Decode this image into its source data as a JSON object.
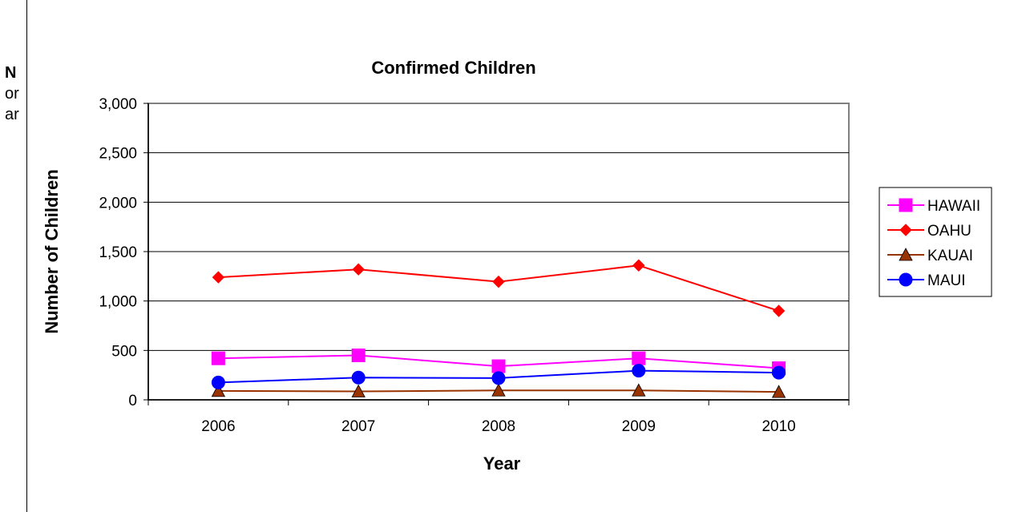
{
  "background_fragments": [
    "N",
    "or",
    "ar"
  ],
  "chart_data": {
    "type": "line",
    "title": "Confirmed Children",
    "xlabel": "Year",
    "ylabel": "Number of Children",
    "categories": [
      "2006",
      "2007",
      "2008",
      "2009",
      "2010"
    ],
    "ylim": [
      0,
      3000
    ],
    "yticks": [
      0,
      500,
      1000,
      1500,
      2000,
      2500,
      3000
    ],
    "ytick_labels": [
      "0",
      "500",
      "1,000",
      "1,500",
      "2,000",
      "2,500",
      "3,000"
    ],
    "grid": "horizontal",
    "legend_position": "right",
    "series": [
      {
        "name": "HAWAII",
        "values": [
          420,
          450,
          340,
          420,
          320
        ],
        "color": "#FF00FF",
        "marker": "square"
      },
      {
        "name": "OAHU",
        "values": [
          1240,
          1320,
          1195,
          1360,
          900
        ],
        "color": "#FF0000",
        "marker": "diamond"
      },
      {
        "name": "KAUAI",
        "values": [
          90,
          85,
          95,
          95,
          80
        ],
        "color": "#993300",
        "marker": "triangle"
      },
      {
        "name": "MAUI",
        "values": [
          175,
          225,
          220,
          295,
          275
        ],
        "color": "#0000FF",
        "marker": "circle"
      }
    ]
  }
}
